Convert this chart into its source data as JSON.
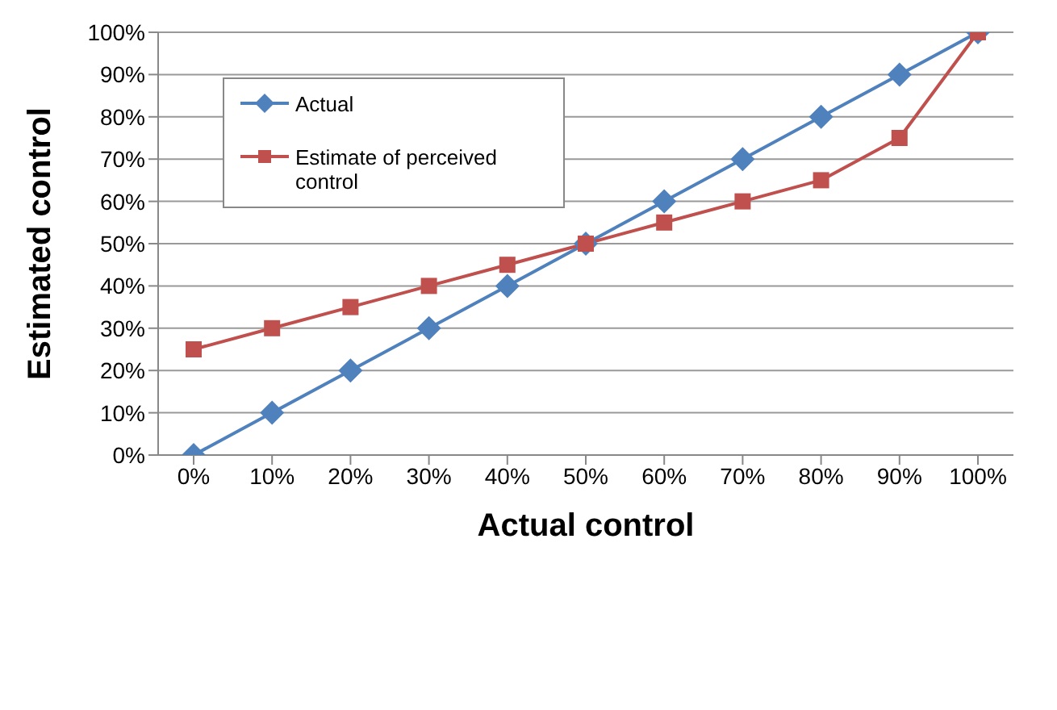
{
  "chart_data": {
    "type": "line",
    "xlabel": "Actual control",
    "ylabel": "Estimated control",
    "categories": [
      "0%",
      "10%",
      "20%",
      "30%",
      "40%",
      "50%",
      "60%",
      "70%",
      "80%",
      "90%",
      "100%"
    ],
    "series": [
      {
        "name": "Actual",
        "color": "#4f81bd",
        "marker": "diamond",
        "values": [
          0,
          10,
          20,
          30,
          40,
          50,
          60,
          70,
          80,
          90,
          100
        ]
      },
      {
        "name": "Estimate of perceived control",
        "color": "#c0504d",
        "marker": "square",
        "values": [
          25,
          30,
          35,
          40,
          45,
          50,
          55,
          60,
          65,
          75,
          100
        ]
      }
    ],
    "ylim": [
      0,
      100
    ],
    "yticks": [
      {
        "value": 0,
        "label": "0%"
      },
      {
        "value": 10,
        "label": "10%"
      },
      {
        "value": 20,
        "label": "20%"
      },
      {
        "value": 30,
        "label": "30%"
      },
      {
        "value": 40,
        "label": "40%"
      },
      {
        "value": 50,
        "label": "50%"
      },
      {
        "value": 60,
        "label": "60%"
      },
      {
        "value": 70,
        "label": "70%"
      },
      {
        "value": 80,
        "label": "80%"
      },
      {
        "value": 90,
        "label": "90%"
      },
      {
        "value": 100,
        "label": "100%"
      }
    ],
    "grid": "y",
    "legend": "top left",
    "line_style": "solid"
  }
}
